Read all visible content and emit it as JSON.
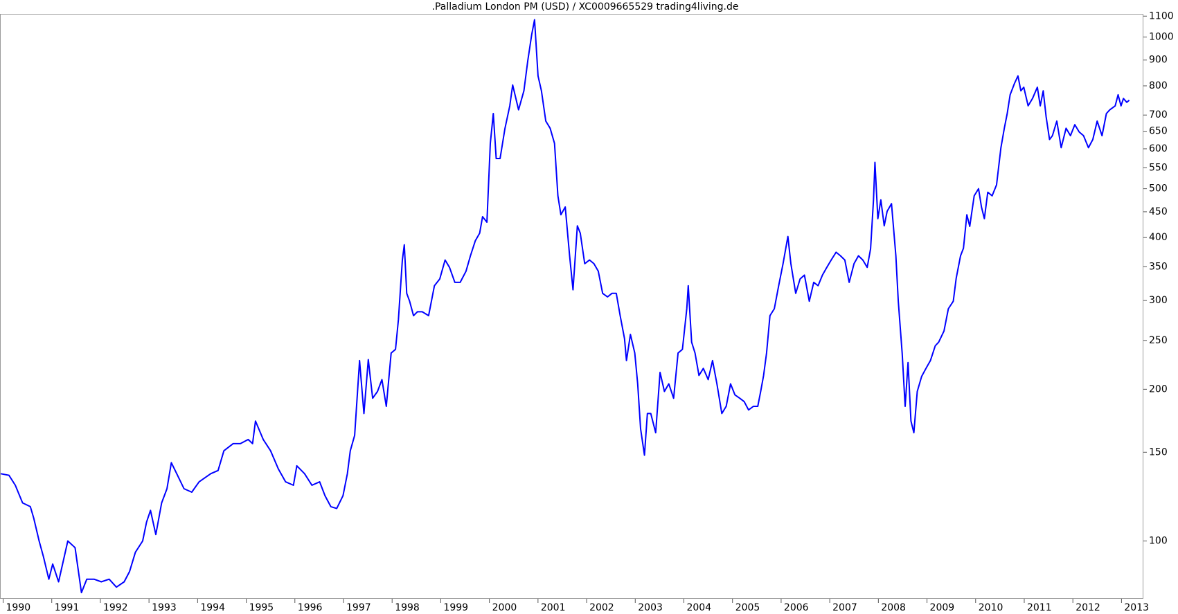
{
  "chart_data": {
    "type": "line",
    "title": ".Palladium London PM (USD) / XC0009665529 trading4living.de",
    "color": "#0000ff",
    "log_scale": true,
    "y_axis_side": "right",
    "xlim": [
      1989.95,
      2013.45
    ],
    "xticks": [
      1990,
      1991,
      1992,
      1993,
      1994,
      1995,
      1996,
      1997,
      1998,
      1999,
      2000,
      2001,
      2002,
      2003,
      2004,
      2005,
      2006,
      2007,
      2008,
      2009,
      2010,
      2011,
      2012,
      2013
    ],
    "ylim": [
      76.8,
      1108
    ],
    "yticks": [
      100,
      150,
      200,
      250,
      300,
      350,
      400,
      450,
      500,
      550,
      600,
      650,
      700,
      800,
      900,
      1000,
      1100
    ],
    "x": [
      1989.95,
      1990.12,
      1990.25,
      1990.4,
      1990.56,
      1990.63,
      1990.74,
      1990.83,
      1990.94,
      1991.02,
      1991.14,
      1991.33,
      1991.48,
      1991.61,
      1991.72,
      1991.87,
      1992.02,
      1992.18,
      1992.33,
      1992.49,
      1992.6,
      1992.72,
      1992.87,
      1992.95,
      1993.03,
      1993.14,
      1993.26,
      1993.37,
      1993.46,
      1993.57,
      1993.72,
      1993.88,
      1994.03,
      1994.27,
      1994.42,
      1994.54,
      1994.73,
      1994.88,
      1995.04,
      1995.13,
      1995.19,
      1995.35,
      1995.5,
      1995.66,
      1995.81,
      1995.97,
      1996.04,
      1996.2,
      1996.35,
      1996.51,
      1996.62,
      1996.74,
      1996.86,
      1996.99,
      1997.08,
      1997.14,
      1997.23,
      1997.33,
      1997.42,
      1997.51,
      1997.6,
      1997.7,
      1997.79,
      1997.88,
      1997.98,
      1998.07,
      1998.13,
      1998.21,
      1998.25,
      1998.3,
      1998.36,
      1998.44,
      1998.52,
      1998.62,
      1998.75,
      1998.87,
      1998.98,
      1999.09,
      1999.18,
      1999.29,
      1999.4,
      1999.52,
      1999.61,
      1999.71,
      1999.8,
      1999.86,
      1999.95,
      2000.02,
      2000.08,
      2000.14,
      2000.22,
      2000.32,
      2000.42,
      2000.48,
      2000.6,
      2000.71,
      2000.79,
      2000.87,
      2000.93,
      2001.0,
      2001.07,
      2001.16,
      2001.25,
      2001.34,
      2001.41,
      2001.47,
      2001.56,
      2001.65,
      2001.72,
      2001.81,
      2001.87,
      2001.96,
      2002.06,
      2002.15,
      2002.24,
      2002.33,
      2002.43,
      2002.52,
      2002.61,
      2002.69,
      2002.78,
      2002.82,
      2002.9,
      2002.99,
      2003.05,
      2003.11,
      2003.19,
      2003.25,
      2003.32,
      2003.42,
      2003.51,
      2003.6,
      2003.69,
      2003.79,
      2003.88,
      2003.97,
      2004.06,
      2004.09,
      2004.16,
      2004.23,
      2004.31,
      2004.4,
      2004.5,
      2004.59,
      2004.68,
      2004.78,
      2004.87,
      2004.96,
      2005.05,
      2005.15,
      2005.24,
      2005.33,
      2005.43,
      2005.52,
      2005.58,
      2005.64,
      2005.7,
      2005.77,
      2005.86,
      2005.95,
      2006.04,
      2006.14,
      2006.2,
      2006.3,
      2006.39,
      2006.48,
      2006.58,
      2006.67,
      2006.76,
      2006.85,
      2006.94,
      2007.03,
      2007.13,
      2007.22,
      2007.31,
      2007.4,
      2007.5,
      2007.59,
      2007.68,
      2007.77,
      2007.84,
      2007.9,
      2007.93,
      2007.99,
      2008.05,
      2008.12,
      2008.18,
      2008.27,
      2008.36,
      2008.41,
      2008.49,
      2008.55,
      2008.61,
      2008.67,
      2008.73,
      2008.8,
      2008.89,
      2008.98,
      2009.07,
      2009.17,
      2009.24,
      2009.35,
      2009.44,
      2009.54,
      2009.6,
      2009.69,
      2009.75,
      2009.82,
      2009.88,
      2009.97,
      2010.06,
      2010.12,
      2010.18,
      2010.25,
      2010.34,
      2010.43,
      2010.52,
      2010.59,
      2010.65,
      2010.71,
      2010.8,
      2010.87,
      2010.93,
      2010.99,
      2011.08,
      2011.17,
      2011.27,
      2011.33,
      2011.39,
      2011.45,
      2011.52,
      2011.58,
      2011.67,
      2011.76,
      2011.86,
      2011.95,
      2012.04,
      2012.13,
      2012.22,
      2012.32,
      2012.41,
      2012.5,
      2012.6,
      2012.69,
      2012.76,
      2012.87,
      2012.93,
      2012.99,
      2013.04,
      2013.11,
      2013.16
    ],
    "values": [
      136,
      135,
      129,
      119,
      117,
      111,
      100,
      93,
      84,
      90,
      83,
      100,
      97,
      79,
      84,
      84,
      83,
      84,
      81,
      83,
      87,
      95,
      100,
      109,
      115,
      103,
      119,
      127,
      143,
      136,
      127,
      125,
      131,
      136,
      138,
      151,
      156,
      156,
      159,
      156,
      173,
      159,
      151,
      139,
      131,
      129,
      141,
      136,
      129,
      131,
      123,
      117,
      116,
      123,
      136,
      151,
      162,
      228,
      179,
      229,
      192,
      198,
      209,
      185,
      236,
      240,
      275,
      361,
      387,
      310,
      299,
      280,
      285,
      285,
      280,
      321,
      331,
      361,
      349,
      326,
      326,
      343,
      368,
      394,
      408,
      440,
      429,
      615,
      705,
      574,
      574,
      658,
      730,
      803,
      717,
      782,
      897,
      1010,
      1082,
      837,
      782,
      681,
      659,
      615,
      484,
      444,
      460,
      368,
      315,
      422,
      408,
      355,
      361,
      355,
      343,
      310,
      305,
      310,
      310,
      280,
      252,
      228,
      257,
      236,
      205,
      167,
      148,
      179,
      179,
      164,
      216,
      198,
      205,
      192,
      236,
      240,
      289,
      321,
      248,
      236,
      213,
      220,
      209,
      228,
      205,
      179,
      185,
      205,
      195,
      192,
      189,
      182,
      185,
      185,
      198,
      213,
      236,
      280,
      289,
      321,
      355,
      402,
      355,
      310,
      331,
      337,
      299,
      326,
      321,
      337,
      349,
      361,
      374,
      368,
      361,
      326,
      355,
      368,
      361,
      349,
      380,
      475,
      564,
      436,
      475,
      422,
      451,
      467,
      368,
      299,
      236,
      185,
      226,
      173,
      164,
      198,
      212,
      220,
      228,
      244,
      248,
      261,
      289,
      299,
      332,
      368,
      381,
      444,
      421,
      484,
      500,
      460,
      436,
      492,
      484,
      509,
      603,
      659,
      705,
      768,
      809,
      837,
      782,
      795,
      730,
      755,
      795,
      730,
      782,
      694,
      626,
      637,
      681,
      603,
      659,
      637,
      670,
      648,
      637,
      603,
      626,
      681,
      637,
      705,
      717,
      730,
      768,
      730,
      755,
      742,
      749
    ]
  }
}
